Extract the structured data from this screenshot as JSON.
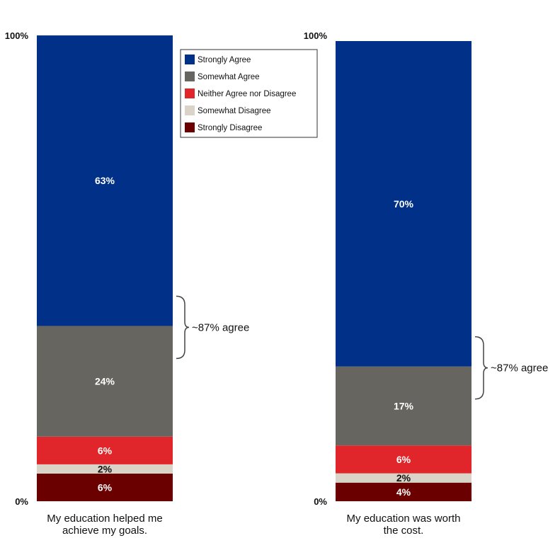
{
  "chart_data": {
    "type": "bar",
    "stacked": true,
    "normalized": true,
    "ylim": [
      0,
      100
    ],
    "y_ticks": [
      "0%",
      "100%"
    ],
    "series": [
      {
        "name": "Strongly Agree",
        "color": "#003087",
        "label_color": "#ffffff"
      },
      {
        "name": "Somewhat Agree",
        "color": "#66655f",
        "label_color": "#ffffff"
      },
      {
        "name": "Neither Agree nor Disagree",
        "color": "#e1262b",
        "label_color": "#ffffff"
      },
      {
        "name": "Somewhat Disagree",
        "color": "#d9d4c7",
        "label_color": "#111111"
      },
      {
        "name": "Strongly Disagree",
        "color": "#6b0000",
        "label_color": "#ffffff"
      }
    ],
    "bars": [
      {
        "label_lines": [
          "My education helped me",
          "achieve my goals."
        ],
        "values": [
          63,
          24,
          6,
          2,
          6
        ],
        "value_labels": [
          "63%",
          "24%",
          "6%",
          "2%",
          "6%"
        ],
        "bracket_label": "~87% agree"
      },
      {
        "label_lines": [
          "My education was worth",
          "the cost."
        ],
        "values": [
          70,
          17,
          6,
          2,
          4
        ],
        "value_labels": [
          "70%",
          "17%",
          "6%",
          "2%",
          "4%"
        ],
        "bracket_label": "~87% agree"
      }
    ],
    "legend_position": "top-right of first bar"
  }
}
